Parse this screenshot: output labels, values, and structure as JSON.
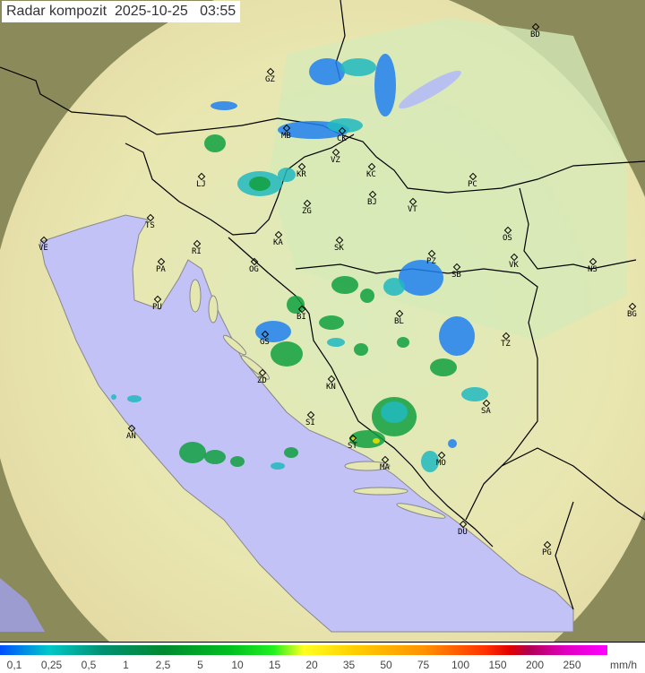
{
  "title": {
    "label": "Radar kompozit",
    "date": "2025-10-25",
    "time": "03:55"
  },
  "cities": [
    "BD",
    "GZ",
    "MB",
    "CK",
    "VZ",
    "KR",
    "KC",
    "LJ",
    "ZG",
    "BJ",
    "VT",
    "PC",
    "TS",
    "VE",
    "RI",
    "KA",
    "SK",
    "OS",
    "PA",
    "OG",
    "PZ",
    "SB",
    "VK",
    "NS",
    "PU",
    "BI",
    "BL",
    "BG",
    "GS",
    "TZ",
    "ZD",
    "KN",
    "SA",
    "SI",
    "AN",
    "ST",
    "MA",
    "MO",
    "DU",
    "PG"
  ],
  "legend": {
    "unit": "mm/h",
    "values": [
      "0,1",
      "0,25",
      "0,5",
      "1",
      "2,5",
      "5",
      "10",
      "15",
      "20",
      "35",
      "50",
      "75",
      "100",
      "150",
      "200",
      "250"
    ]
  },
  "colors": {
    "sea": "#c0c0f8",
    "land": "#e8ecb0",
    "outside": "#8c8c5c",
    "echo_light": "#2080f0",
    "echo_mid": "#20b8c0",
    "echo_heavy": "#10a040",
    "echo_peak": "#f0e000"
  }
}
